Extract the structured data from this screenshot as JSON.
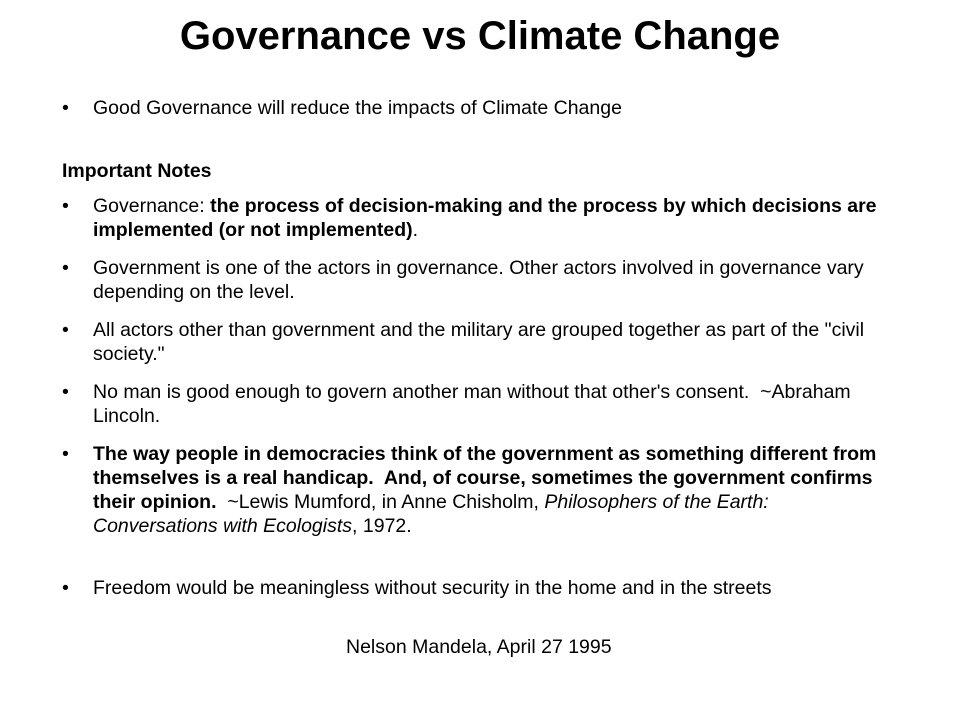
{
  "title": "Governance vs Climate Change",
  "intro": "Good Governance will reduce the impacts of Climate Change",
  "notes_heading": "Important Notes",
  "notes": [
    [
      "Governance: ",
      "the process of decision-making and the process by which decisions are implemented (or not implemented)",
      "."
    ],
    [
      "Government is one of the actors in governance. Other actors involved in governance vary depending on the level."
    ],
    [
      "All actors other than government and the military are grouped together as part of the \"civil society.\""
    ],
    [
      "No man is good enough to govern another man without that other's consent.  ~Abraham Lincoln."
    ],
    [
      "The way people in democracies think of the government as something different from themselves is a real handicap.  And, of course, sometimes the government confirms their opinion.",
      "  ~Lewis Mumford, in Anne Chisholm, ",
      "Philosophers of the Earth:  Conversations with Ecologists",
      ", 1972."
    ],
    [
      "Freedom would be meaningless without security in the home and in the streets"
    ]
  ],
  "attribution": "Nelson Mandela, April 27 1995"
}
